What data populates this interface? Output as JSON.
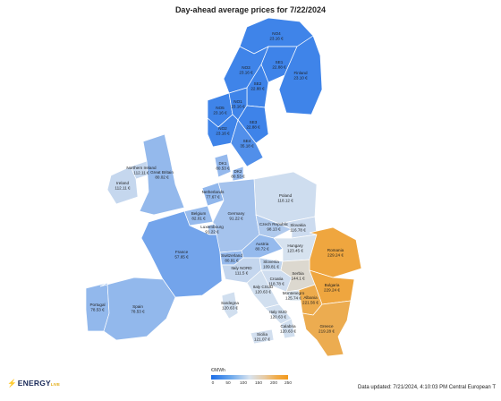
{
  "title": "Day-ahead average prices for 7/22/2024",
  "legend": {
    "unit": "€/MWh",
    "ticks": [
      "0",
      "50",
      "100",
      "150",
      "200",
      "250"
    ]
  },
  "brand": {
    "name": "ENERGY",
    "suffix": "LIVE"
  },
  "updated": "Data updated: 7/21/2024, 4:10:03 PM Central European T",
  "colors": {
    "low": "#1c6ee8",
    "mid": "#d8e3ef",
    "high": "#f39a1c"
  },
  "regions": [
    {
      "code": "no4",
      "name": "NO4",
      "value": "23.16 €",
      "price": 23.16
    },
    {
      "code": "se1",
      "name": "SE1",
      "value": "22.88 €",
      "price": 22.88
    },
    {
      "code": "no3",
      "name": "NO3",
      "value": "23.16 €",
      "price": 23.16
    },
    {
      "code": "se2",
      "name": "SE2",
      "value": "22.88 €",
      "price": 22.88
    },
    {
      "code": "finland",
      "name": "Finland",
      "value": "23.10 €",
      "price": 23.1
    },
    {
      "code": "no5",
      "name": "NO5",
      "value": "23.16 €",
      "price": 23.16
    },
    {
      "code": "no1",
      "name": "NO1",
      "value": "23.16 €",
      "price": 23.16
    },
    {
      "code": "no2",
      "name": "NO2",
      "value": "23.16 €",
      "price": 23.16
    },
    {
      "code": "se3",
      "name": "SE3",
      "value": "22.88 €",
      "price": 22.88
    },
    {
      "code": "se4",
      "name": "SE4",
      "value": "35.18 €",
      "price": 35.18
    },
    {
      "code": "dk1",
      "name": "DK1",
      "value": "80.53 €",
      "price": 80.53
    },
    {
      "code": "dk2",
      "name": "DK2",
      "value": "80.53 €",
      "price": 80.53
    },
    {
      "code": "n_ireland",
      "name": "Northern Ireland",
      "value": "112.11 €",
      "price": 112.11
    },
    {
      "code": "ireland",
      "name": "Ireland",
      "value": "112.11 €",
      "price": 112.11
    },
    {
      "code": "gb",
      "name": "Great Britain",
      "value": "80.02 €",
      "price": 80.02
    },
    {
      "code": "netherlands",
      "name": "Netherlands",
      "value": "77.67 €",
      "price": 77.67
    },
    {
      "code": "poland",
      "name": "Poland",
      "value": "118.12 €",
      "price": 118.12
    },
    {
      "code": "belgium",
      "name": "Belgium",
      "value": "82.01 €",
      "price": 82.01
    },
    {
      "code": "germany",
      "name": "Germany",
      "value": "91.22 €",
      "price": 91.22
    },
    {
      "code": "luxembourg",
      "name": "Luxembourg",
      "value": "91.22 €",
      "price": 91.22
    },
    {
      "code": "czech",
      "name": "Czech Republic",
      "value": "98.13 €",
      "price": 98.13
    },
    {
      "code": "slovakia",
      "name": "Slovakia",
      "value": "116.78 €",
      "price": 116.78
    },
    {
      "code": "austria",
      "name": "Austria",
      "value": "80.72 €",
      "price": 80.72
    },
    {
      "code": "hungary",
      "name": "Hungary",
      "value": "123.45 €",
      "price": 123.45
    },
    {
      "code": "romania",
      "name": "Romania",
      "value": "229.24 €",
      "price": 229.24
    },
    {
      "code": "france",
      "name": "France",
      "value": "57.65 €",
      "price": 57.65
    },
    {
      "code": "switzerland",
      "name": "Switzerland",
      "value": "80.91 €",
      "price": 80.91
    },
    {
      "code": "slovenia",
      "name": "Slovenia",
      "value": "109.81 €",
      "price": 109.81
    },
    {
      "code": "italy_nord",
      "name": "Italy NORD",
      "value": "111.5 €",
      "price": 111.5
    },
    {
      "code": "croatia",
      "name": "Croatia",
      "value": "118.78 €",
      "price": 118.78
    },
    {
      "code": "serbia",
      "name": "Serbia",
      "value": "144.1 €",
      "price": 144.1
    },
    {
      "code": "bulgaria",
      "name": "Bulgaria",
      "value": "229.24 €",
      "price": 229.24
    },
    {
      "code": "portugal",
      "name": "Portugal",
      "value": "78.53 €",
      "price": 78.53
    },
    {
      "code": "spain",
      "name": "Spain",
      "value": "78.53 €",
      "price": 78.53
    },
    {
      "code": "italy_csud",
      "name": "Italy CSUD",
      "value": "120.63 €",
      "price": 120.63
    },
    {
      "code": "italy_sud",
      "name": "Italy SUD",
      "value": "120.63 €",
      "price": 120.63
    },
    {
      "code": "montenegro",
      "name": "Montenegro",
      "value": "125.74 €",
      "price": 125.74
    },
    {
      "code": "albania",
      "name": "Albania",
      "value": "221.56 €",
      "price": 221.56
    },
    {
      "code": "sardegna",
      "name": "Sardegna",
      "value": "120.63 €",
      "price": 120.63
    },
    {
      "code": "calabria",
      "name": "Calabria",
      "value": "120.63 €",
      "price": 120.63
    },
    {
      "code": "greece",
      "name": "Greece",
      "value": "219.28 €",
      "price": 219.28
    },
    {
      "code": "sicilia",
      "name": "Sicilia",
      "value": "121.07 €",
      "price": 121.07
    }
  ]
}
